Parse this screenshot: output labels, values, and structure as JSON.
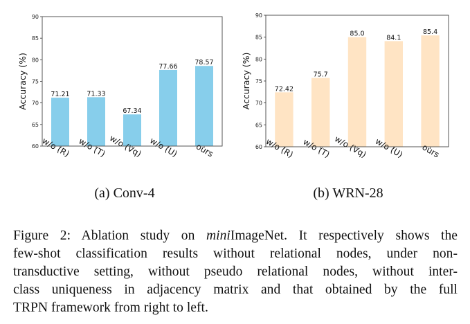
{
  "chart_data": [
    {
      "type": "bar",
      "subcaption": "(a) Conv-4",
      "categories": [
        "w/o (R)",
        "w/o (T)",
        "w/o (Vq)",
        "w/o (U)",
        "ours"
      ],
      "values": [
        71.21,
        71.33,
        67.34,
        77.66,
        78.57
      ],
      "data_labels": [
        "71.21",
        "71.33",
        "67.34",
        "77.66",
        "78.57"
      ],
      "ylabel": "Accuracy (%)",
      "xlabel": "",
      "ylim": [
        60,
        90
      ],
      "yticks": [
        "60",
        "65",
        "70",
        "75",
        "80",
        "85",
        "90"
      ],
      "color": "#87CEEB",
      "grid": false
    },
    {
      "type": "bar",
      "subcaption": "(b) WRN-28",
      "categories": [
        "w/o (R)",
        "w/o (T)",
        "w/o (Vq)",
        "w/o (U)",
        "ours"
      ],
      "values": [
        72.42,
        75.7,
        85.0,
        84.1,
        85.4
      ],
      "data_labels": [
        "72.42",
        "75.7",
        "85.0",
        "84.1",
        "85.4"
      ],
      "ylabel": "Accuracy (%)",
      "xlabel": "",
      "ylim": [
        60,
        90
      ],
      "yticks": [
        "60",
        "65",
        "70",
        "75",
        "80",
        "85",
        "90"
      ],
      "color": "#FFE4C4",
      "grid": false
    }
  ],
  "caption": {
    "line1_a": "Figure 2: Ablation study on ",
    "line1_italic": "mini",
    "line1_b": "ImageNet. It respectively shows the",
    "line2": "few-shot classification results without relational nodes, under non-",
    "line3": "transductive setting, without pseudo relational nodes, without inter-",
    "line4": "class uniqueness in adjacency matrix and that obtained by the full",
    "line5": "TRPN framework from right to left."
  }
}
